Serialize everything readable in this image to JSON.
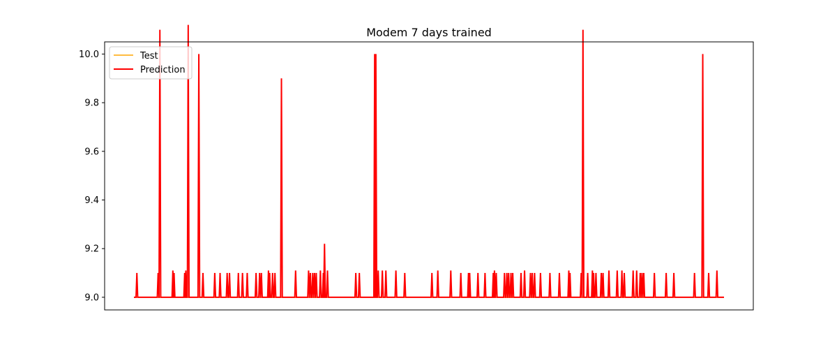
{
  "chart_data": {
    "type": "line",
    "title": "Modem 7 days trained",
    "xlabel": "",
    "ylabel": "",
    "ylim": [
      8.948,
      10.05
    ],
    "xlim": [
      0,
      1000
    ],
    "x_ticks_visible": false,
    "y_ticks": [
      "9.0",
      "9.2",
      "9.4",
      "9.6",
      "9.8",
      "10.0"
    ],
    "grid": false,
    "legend_position": "top-left",
    "baseline": 9.0,
    "x_end": 1000,
    "series": [
      {
        "name": "Test",
        "color": "#ffa500",
        "spikes": []
      },
      {
        "name": "Prediction",
        "color": "#ff0000",
        "spikes": [
          [
            5,
            9.1
          ],
          [
            41,
            9.1
          ],
          [
            44,
            10.1
          ],
          [
            66,
            9.11
          ],
          [
            68,
            9.1
          ],
          [
            86,
            9.1
          ],
          [
            88,
            9.11
          ],
          [
            92,
            10.12
          ],
          [
            110,
            10.0
          ],
          [
            117,
            9.1
          ],
          [
            137,
            9.1
          ],
          [
            146,
            9.1
          ],
          [
            158,
            9.1
          ],
          [
            162,
            9.1
          ],
          [
            177,
            9.1
          ],
          [
            184,
            9.1
          ],
          [
            192,
            9.1
          ],
          [
            207,
            9.1
          ],
          [
            213,
            9.1
          ],
          [
            216,
            9.1
          ],
          [
            228,
            9.11
          ],
          [
            230,
            9.1
          ],
          [
            235,
            9.1
          ],
          [
            239,
            9.1
          ],
          [
            250,
            9.9
          ],
          [
            274,
            9.11
          ],
          [
            296,
            9.11
          ],
          [
            299,
            9.1
          ],
          [
            303,
            9.1
          ],
          [
            306,
            9.1
          ],
          [
            309,
            9.1
          ],
          [
            316,
            9.11
          ],
          [
            321,
            9.1
          ],
          [
            323,
            9.22
          ],
          [
            328,
            9.11
          ],
          [
            376,
            9.1
          ],
          [
            382,
            9.1
          ],
          [
            408,
            10.0
          ],
          [
            410,
            10.0
          ],
          [
            414,
            9.11
          ],
          [
            421,
            9.11
          ],
          [
            427,
            9.11
          ],
          [
            444,
            9.11
          ],
          [
            459,
            9.1
          ],
          [
            505,
            9.1
          ],
          [
            515,
            9.11
          ],
          [
            537,
            9.11
          ],
          [
            554,
            9.1
          ],
          [
            567,
            9.1
          ],
          [
            569,
            9.1
          ],
          [
            583,
            9.1
          ],
          [
            595,
            9.1
          ],
          [
            609,
            9.1
          ],
          [
            611,
            9.11
          ],
          [
            614,
            9.1
          ],
          [
            628,
            9.1
          ],
          [
            632,
            9.1
          ],
          [
            635,
            9.1
          ],
          [
            639,
            9.1
          ],
          [
            642,
            9.1
          ],
          [
            656,
            9.1
          ],
          [
            662,
            9.11
          ],
          [
            672,
            9.1
          ],
          [
            675,
            9.1
          ],
          [
            679,
            9.1
          ],
          [
            689,
            9.1
          ],
          [
            705,
            9.1
          ],
          [
            721,
            9.1
          ],
          [
            737,
            9.11
          ],
          [
            739,
            9.1
          ],
          [
            758,
            9.1
          ],
          [
            761,
            10.1
          ],
          [
            769,
            9.1
          ],
          [
            777,
            9.11
          ],
          [
            779,
            9.1
          ],
          [
            783,
            9.1
          ],
          [
            792,
            9.1
          ],
          [
            795,
            9.1
          ],
          [
            805,
            9.11
          ],
          [
            819,
            9.11
          ],
          [
            827,
            9.11
          ],
          [
            831,
            9.1
          ],
          [
            846,
            9.11
          ],
          [
            852,
            9.11
          ],
          [
            858,
            9.1
          ],
          [
            861,
            9.1
          ],
          [
            864,
            9.1
          ],
          [
            882,
            9.1
          ],
          [
            902,
            9.1
          ],
          [
            915,
            9.1
          ],
          [
            950,
            9.1
          ],
          [
            964,
            10.0
          ],
          [
            974,
            9.1
          ],
          [
            988,
            9.11
          ]
        ]
      }
    ]
  }
}
